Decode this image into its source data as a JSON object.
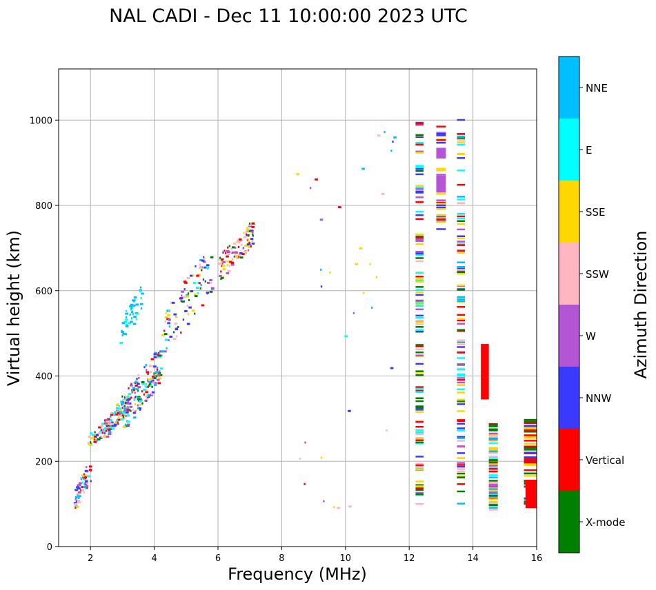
{
  "chart_data": {
    "type": "scatter",
    "title": "NAL CADI - Dec 11 10:00:00 2023 UTC",
    "xlabel": "Frequency (MHz)",
    "ylabel": "Virtual height (km)",
    "xlim": [
      1,
      16
    ],
    "ylim": [
      0,
      1120
    ],
    "xticks": [
      2,
      4,
      6,
      8,
      10,
      12,
      14,
      16
    ],
    "yticks": [
      0,
      200,
      400,
      600,
      800,
      1000
    ],
    "grid": true,
    "colorbar": {
      "label": "Azimuth Direction",
      "categories": [
        {
          "name": "X-mode",
          "color": "#008000"
        },
        {
          "name": "Vertical",
          "color": "#ff0000"
        },
        {
          "name": "NNW",
          "color": "#3a3aff"
        },
        {
          "name": "W",
          "color": "#b455d6"
        },
        {
          "name": "SSW",
          "color": "#ffb6c1"
        },
        {
          "name": "SSE",
          "color": "#ffd700"
        },
        {
          "name": "E",
          "color": "#00ffff"
        },
        {
          "name": "NNE",
          "color": "#00bfff"
        }
      ]
    },
    "clusters": [
      {
        "name": "O-trace 1.5-2 MHz",
        "xr": [
          1.45,
          2.0
        ],
        "yr": [
          90,
          200
        ],
        "n": 70,
        "palette": [
          "Vertical",
          "SSE",
          "NNW",
          "E",
          "SSW",
          "W",
          "NNE"
        ]
      },
      {
        "name": "O-trace 1.9-2.5 MHz",
        "xr": [
          1.9,
          2.6
        ],
        "yr": [
          240,
          300
        ],
        "n": 60,
        "palette": [
          "Vertical",
          "SSE",
          "SSW",
          "NNW",
          "E",
          "X-mode"
        ]
      },
      {
        "name": "O-trace 2.5-3.2 MHz",
        "xr": [
          2.4,
          3.2
        ],
        "yr": [
          260,
          360
        ],
        "n": 110,
        "palette": [
          "Vertical",
          "W",
          "NNW",
          "SSW",
          "E",
          "NNE",
          "SSE"
        ]
      },
      {
        "name": "Spread F 3-4 MHz",
        "xr": [
          2.9,
          4.2
        ],
        "yr": [
          280,
          460
        ],
        "n": 180,
        "palette": [
          "X-mode",
          "NNE",
          "E",
          "SSE",
          "Vertical",
          "NNW",
          "SSW",
          "W"
        ]
      },
      {
        "name": "High trace 3 MHz",
        "xr": [
          2.9,
          3.6
        ],
        "yr": [
          480,
          610
        ],
        "n": 45,
        "palette": [
          "NNE",
          "E",
          "NNE"
        ]
      },
      {
        "name": "Oblique 4-5.5 MHz",
        "xr": [
          4.2,
          5.8
        ],
        "yr": [
          460,
          690
        ],
        "n": 100,
        "palette": [
          "NNW",
          "W",
          "SSE",
          "E",
          "SSW",
          "NNE",
          "X-mode",
          "Vertical"
        ]
      },
      {
        "name": "Oblique 6-7 MHz",
        "xr": [
          6.0,
          7.1
        ],
        "yr": [
          630,
          760
        ],
        "n": 110,
        "palette": [
          "NNW",
          "W",
          "Vertical",
          "SSE",
          "X-mode",
          "SSW"
        ]
      },
      {
        "name": "Scatter 8-11.5 MHz",
        "xr": [
          8.4,
          11.6
        ],
        "yr": [
          90,
          1000
        ],
        "n": 34,
        "palette": [
          "NNE",
          "E",
          "W",
          "SSW",
          "SSE",
          "Vertical",
          "NNW"
        ]
      }
    ],
    "columns": [
      {
        "x": [
          12.2,
          12.45
        ],
        "yr": [
          100,
          1015
        ],
        "n": 120,
        "palette": [
          "SSE",
          "Vertical",
          "NNW",
          "W",
          "SSW",
          "X-mode",
          "E"
        ]
      },
      {
        "x": [
          12.85,
          13.15
        ],
        "yr": [
          730,
          995
        ],
        "n": 30,
        "palette": [
          "W",
          "Vertical",
          "NNW",
          "SSE"
        ]
      },
      {
        "x": [
          13.5,
          13.75
        ],
        "yr": [
          100,
          1005
        ],
        "n": 110,
        "palette": [
          "W",
          "NNW",
          "Vertical",
          "SSW",
          "X-mode",
          "NNE",
          "E",
          "SSE"
        ]
      },
      {
        "x": [
          14.5,
          14.78
        ],
        "yr": [
          88,
          290
        ],
        "n": 70,
        "palette": [
          "Vertical",
          "SSW",
          "NNE",
          "E",
          "X-mode",
          "W",
          "SSE"
        ]
      },
      {
        "x": [
          15.6,
          16.0
        ],
        "yr": [
          90,
          300
        ],
        "n": 50,
        "palette": [
          "Vertical",
          "X-mode",
          "Vertical",
          "SSE",
          "NNW"
        ]
      }
    ],
    "blocks": [
      {
        "x": [
          14.25,
          14.5
        ],
        "y": [
          345,
          475
        ],
        "color": "Vertical"
      },
      {
        "x": [
          15.65,
          16.0
        ],
        "y": [
          90,
          155
        ],
        "color": "Vertical"
      },
      {
        "x": [
          12.85,
          13.15
        ],
        "y": [
          830,
          870
        ],
        "color": "W"
      },
      {
        "x": [
          12.85,
          13.15
        ],
        "y": [
          910,
          935
        ],
        "color": "W"
      }
    ]
  }
}
